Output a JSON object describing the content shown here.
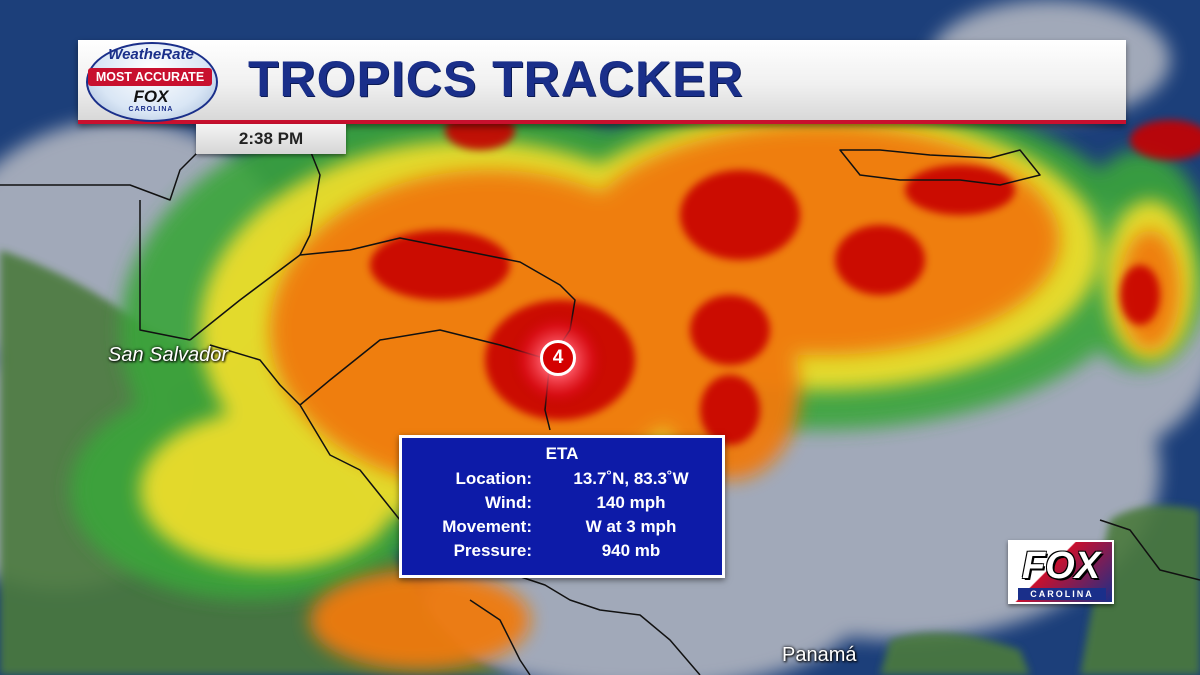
{
  "header": {
    "title": "TROPICS TRACKER",
    "time": "2:38 PM"
  },
  "logo": {
    "brand": "WeatheRate",
    "tagline": "MOST ACCURATE",
    "station": "FOX",
    "market": "CAROLINA"
  },
  "map": {
    "cities": [
      "San Salvador",
      "Panamá"
    ]
  },
  "storm": {
    "category": "4",
    "name": "ETA",
    "rows": [
      {
        "label": "Location:",
        "value": "13.7˚N, 83.3˚W"
      },
      {
        "label": "Wind:",
        "value": "140 mph"
      },
      {
        "label": "Movement:",
        "value": "W at 3 mph"
      },
      {
        "label": "Pressure:",
        "value": "940 mb"
      }
    ]
  },
  "station_logo": {
    "word": "FOX",
    "market": "CAROLINA"
  },
  "colors": {
    "ocean": "#1c3f7a",
    "heavy_rain": "#c80000",
    "rain_orange": "#f07a10",
    "rain_yellow": "#f5e02a",
    "rain_green": "#3aa53a",
    "clouds": "#c8c8c8",
    "info_box": "#0d1ba8",
    "title_blue": "#1a2f8a",
    "accent_red": "#c8102e"
  }
}
